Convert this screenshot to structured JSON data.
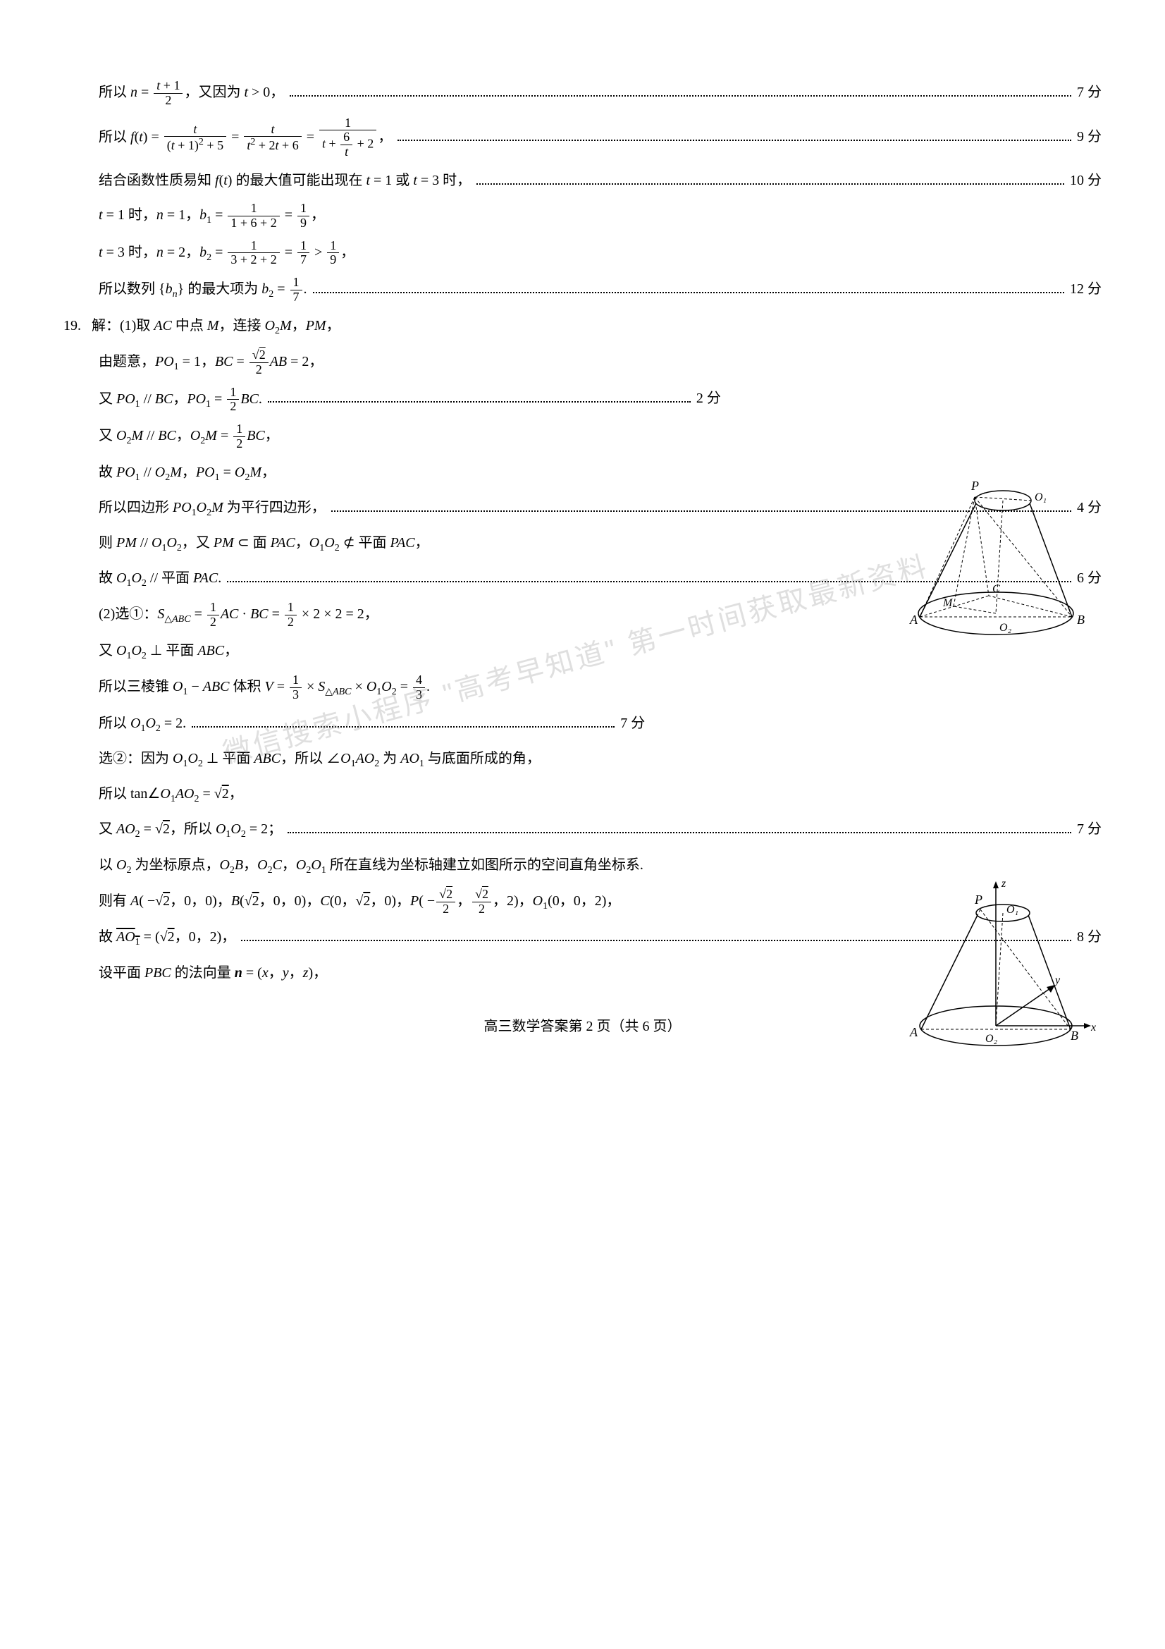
{
  "lines": [
    {
      "indent": 1,
      "content_html": "所以 <span class='ital'>n</span> = <span class='frac'><span class='num'><span class='ital'>t</span> + 1</span><span class='den'>2</span></span>，又因为 <span class='ital'>t</span> &gt; 0，",
      "score": "7 分"
    },
    {
      "indent": 1,
      "content_html": "所以 <span class='ital'>f</span>(<span class='ital'>t</span>) = <span class='frac'><span class='num'><span class='ital'>t</span></span><span class='den'>(<span class='ital'>t</span> + 1)<sup>2</sup> + 5</span></span> = <span class='frac'><span class='num'><span class='ital'>t</span></span><span class='den'><span class='ital'>t</span><sup>2</sup> + 2<span class='ital'>t</span> + 6</span></span> = <span class='frac'><span class='num'>1</span><span class='den'><span class='ital'>t</span> + <span class='frac'><span class='num'>6</span><span class='den'><span class='ital'>t</span></span></span> + 2</span></span>，",
      "score": "9 分"
    },
    {
      "indent": 1,
      "content_html": "结合函数性质易知 <span class='ital'>f</span>(<span class='ital'>t</span>) 的最大值可能出现在 <span class='ital'>t</span> = 1 或 <span class='ital'>t</span> = 3 时，",
      "score": "10 分"
    },
    {
      "indent": 1,
      "content_html": "<span class='ital'>t</span> = 1 时，<span class='ital'>n</span> = 1，<span class='ital'>b</span><sub>1</sub> = <span class='frac'><span class='num'>1</span><span class='den'>1 + 6 + 2</span></span> = <span class='frac'><span class='num'>1</span><span class='den'>9</span></span>，",
      "score": ""
    },
    {
      "indent": 1,
      "content_html": "<span class='ital'>t</span> = 3 时，<span class='ital'>n</span> = 2，<span class='ital'>b</span><sub>2</sub> = <span class='frac'><span class='num'>1</span><span class='den'>3 + 2 + 2</span></span> = <span class='frac'><span class='num'>1</span><span class='den'>7</span></span> &gt; <span class='frac'><span class='num'>1</span><span class='den'>9</span></span>，",
      "score": ""
    },
    {
      "indent": 1,
      "content_html": "所以数列 {<span class='ital'>b</span><sub><span class='ital'>n</span></sub>} 的最大项为 <span class='ital'>b</span><sub>2</sub> = <span class='frac'><span class='num'>1</span><span class='den'>7</span></span>.",
      "score": "12 分"
    },
    {
      "indent": 0,
      "content_html": "<span class='q-num'>19.</span>解：(1)取 <span class='ital'>AC</span> 中点 <span class='ital'>M</span>，连接 <span class='ital'>O</span><sub>2</sub><span class='ital'>M</span>，<span class='ital'>PM</span>，",
      "score": "",
      "short": true
    },
    {
      "indent": 1,
      "content_html": "由题意，<span class='ital'>PO</span><sub>1</sub> = 1，<span class='ital'>BC</span> = <span class='frac'><span class='num'>√<span class='sqrt'>2</span></span><span class='den'>2</span></span><span class='ital'>AB</span> = 2，",
      "score": "",
      "short": true
    },
    {
      "indent": 1,
      "content_html": "又 <span class='ital'>PO</span><sub>1</sub> // <span class='ital'>BC</span>，<span class='ital'>PO</span><sub>1</sub> = <span class='frac'><span class='num'>1</span><span class='den'>2</span></span><span class='ital'>BC</span>.",
      "score": "2 分",
      "short": true
    },
    {
      "indent": 1,
      "content_html": "又 <span class='ital'>O</span><sub>2</sub><span class='ital'>M</span> // <span class='ital'>BC</span>，<span class='ital'>O</span><sub>2</sub><span class='ital'>M</span> = <span class='frac'><span class='num'>1</span><span class='den'>2</span></span><span class='ital'>BC</span>，",
      "score": "",
      "short": true
    },
    {
      "indent": 1,
      "content_html": "故 <span class='ital'>PO</span><sub>1</sub> // <span class='ital'>O</span><sub>2</sub><span class='ital'>M</span>，<span class='ital'>PO</span><sub>1</sub> = <span class='ital'>O</span><sub>2</sub><span class='ital'>M</span>，",
      "score": ""
    },
    {
      "indent": 1,
      "content_html": "所以四边形 <span class='ital'>PO</span><sub>1</sub><span class='ital'>O</span><sub>2</sub><span class='ital'>M</span> 为平行四边形，",
      "score": "4 分"
    },
    {
      "indent": 1,
      "content_html": "则 <span class='ital'>PM</span> // <span class='ital'>O</span><sub>1</sub><span class='ital'>O</span><sub>2</sub>，又 <span class='ital'>PM</span> ⊂ 面 <span class='ital'>PAC</span>，<span class='ital'>O</span><sub>1</sub><span class='ital'>O</span><sub>2</sub> ⊄ 平面 <span class='ital'>PAC</span>，",
      "score": ""
    },
    {
      "indent": 1,
      "content_html": "故 <span class='ital'>O</span><sub>1</sub><span class='ital'>O</span><sub>2</sub> // 平面 <span class='ital'>PAC</span>.",
      "score": "6 分"
    },
    {
      "indent": 1,
      "content_html": "(2)选①：<span class='ital'>S</span><sub>△<span class='ital'>ABC</span></sub> = <span class='frac'><span class='num'>1</span><span class='den'>2</span></span><span class='ital'>AC</span> · <span class='ital'>BC</span> = <span class='frac'><span class='num'>1</span><span class='den'>2</span></span> × 2 × 2 = 2，",
      "score": "",
      "short": true
    },
    {
      "indent": 1,
      "content_html": "又 <span class='ital'>O</span><sub>1</sub><span class='ital'>O</span><sub>2</sub> ⊥ 平面 <span class='ital'>ABC</span>，",
      "score": "",
      "short": true
    },
    {
      "indent": 1,
      "content_html": "所以三棱锥 <span class='ital'>O</span><sub>1</sub> − <span class='ital'>ABC</span> 体积 <span class='ital'>V</span> = <span class='frac'><span class='num'>1</span><span class='den'>3</span></span> × <span class='ital'>S</span><sub>△<span class='ital'>ABC</span></sub> × <span class='ital'>O</span><sub>1</sub><span class='ital'>O</span><sub>2</sub> = <span class='frac'><span class='num'>4</span><span class='den'>3</span></span>.",
      "score": "",
      "short": true
    },
    {
      "indent": 1,
      "content_html": "所以 <span class='ital'>O</span><sub>1</sub><span class='ital'>O</span><sub>2</sub> = 2.",
      "score": "7 分",
      "short": true
    },
    {
      "indent": 1,
      "content_html": "选②：因为 <span class='ital'>O</span><sub>1</sub><span class='ital'>O</span><sub>2</sub> ⊥ 平面 <span class='ital'>ABC</span>，所以 ∠<span class='ital'>O</span><sub>1</sub><span class='ital'>AO</span><sub>2</sub> 为 <span class='ital'>AO</span><sub>1</sub> 与底面所成的角，",
      "score": ""
    },
    {
      "indent": 1,
      "content_html": "所以 tan∠<span class='ital'>O</span><sub>1</sub><span class='ital'>AO</span><sub>2</sub> = √<span class='sqrt'>2</span>，",
      "score": ""
    },
    {
      "indent": 1,
      "content_html": "又 <span class='ital'>AO</span><sub>2</sub> = √<span class='sqrt'>2</span>，所以 <span class='ital'>O</span><sub>1</sub><span class='ital'>O</span><sub>2</sub> = 2；",
      "score": "7 分"
    },
    {
      "indent": 1,
      "content_html": "以 <span class='ital'>O</span><sub>2</sub> 为坐标原点，<span class='ital'>O</span><sub>2</sub><span class='ital'>B</span>，<span class='ital'>O</span><sub>2</sub><span class='ital'>C</span>，<span class='ital'>O</span><sub>2</sub><span class='ital'>O</span><sub>1</sub> 所在直线为坐标轴建立如图所示的空间直角坐标系.",
      "score": ""
    },
    {
      "indent": 1,
      "content_html": "则有 <span class='ital'>A</span>( −√<span class='sqrt'>2</span>，0，0)，<span class='ital'>B</span>(√<span class='sqrt'>2</span>，0，0)，<span class='ital'>C</span>(0，√<span class='sqrt'>2</span>，0)，<span class='ital'>P</span>( −<span class='frac'><span class='num'>√<span class='sqrt'>2</span></span><span class='den'>2</span></span>，<span class='frac'><span class='num'>√<span class='sqrt'>2</span></span><span class='den'>2</span></span>，2)，<span class='ital'>O</span><sub>1</sub>(0，0，2)，",
      "score": ""
    },
    {
      "indent": 1,
      "content_html": "故 <span class='vec'><span class='ital'>AO</span><sub>1</sub></span> = (√<span class='sqrt'>2</span>，0，2)，",
      "score": "8 分"
    },
    {
      "indent": 1,
      "content_html": "设平面 <span class='ital'>PBC</span> 的法向量 <span class='ital'><b>n</b></span> = (<span class='ital'>x</span>，<span class='ital'>y</span>，<span class='ital'>z</span>)，",
      "score": ""
    }
  ],
  "footer": "高三数学答案第 2 页（共 6 页）",
  "watermark": "微信搜索小程序 \"高考早知道\"\n第一时间获取最新资料",
  "fig1_labels": {
    "P": "P",
    "O1": "O₁",
    "A": "A",
    "B": "B",
    "C": "C",
    "M": "M",
    "O2": "O₂"
  },
  "fig2_labels": {
    "P": "P",
    "O1": "O₁",
    "A": "A",
    "B": "B",
    "O2": "O₂",
    "x": "x",
    "y": "y",
    "z": "z"
  }
}
